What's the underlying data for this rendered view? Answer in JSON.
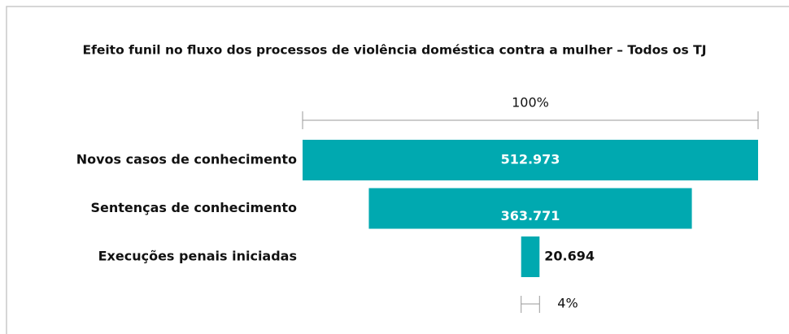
{
  "chart_data": {
    "type": "funnel",
    "title": "Efeito funil no fluxo dos processos de violência doméstica contra a mulher – Todos os TJ",
    "categories": [
      "Novos casos de conhecimento",
      "Sentenças de conhecimento",
      "Execuções penais iniciadas"
    ],
    "values": [
      512973,
      363771,
      20694
    ],
    "value_labels": [
      "512.973",
      "363.771",
      "20.694"
    ],
    "color": "#00a9b0",
    "annotations": [
      "100%",
      "4%"
    ]
  }
}
